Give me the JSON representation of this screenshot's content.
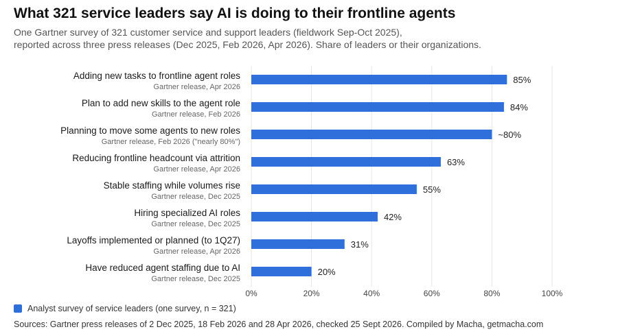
{
  "header": {
    "title": "What 321 service leaders say AI is doing to their frontline agents",
    "subtitle_line1": "One Gartner survey of 321 customer service and support leaders (fieldwork Sep-Oct 2025),",
    "subtitle_line2": "reported across three press releases (Dec 2025, Feb 2026, Apr 2026). Share of leaders or their organizations."
  },
  "legend": {
    "label": "Analyst survey of service leaders (one survey, n = 321)",
    "color": "#2f6fdc"
  },
  "footer": {
    "sources": "Sources: Gartner press releases of 2 Dec 2025, 18 Feb 2026 and 28 Apr 2026, checked 25 Sept 2026. Compiled by Macha, getmacha.com"
  },
  "chart_data": {
    "type": "bar",
    "orientation": "horizontal",
    "categories": [
      "Adding new tasks to frontline agent roles",
      "Plan to add new skills to the agent role",
      "Planning to move some agents to new roles",
      "Reducing frontline headcount via attrition",
      "Stable staffing while volumes rise",
      "Hiring specialized AI roles",
      "Layoffs implemented or planned (to 1Q27)",
      "Have reduced agent staffing due to AI"
    ],
    "category_sources": [
      "Gartner release, Apr 2026",
      "Gartner release, Feb 2026",
      "Gartner release, Feb 2026 (\"nearly 80%\")",
      "Gartner release, Apr 2026",
      "Gartner release, Dec 2025",
      "Gartner release, Dec 2025",
      "Gartner release, Apr 2026",
      "Gartner release, Dec 2025"
    ],
    "values": [
      85,
      84,
      80,
      63,
      55,
      42,
      31,
      20
    ],
    "data_labels": [
      "85%",
      "84%",
      "~80%",
      "63%",
      "55%",
      "42%",
      "31%",
      "20%"
    ],
    "xlim": [
      0,
      100
    ],
    "x_ticks": [
      0,
      20,
      40,
      60,
      80,
      100
    ],
    "x_tick_labels": [
      "0%",
      "20%",
      "40%",
      "60%",
      "80%",
      "100%"
    ],
    "grid": "vertical",
    "legend_position": "bottom-left",
    "bar_color": "#2f6fdc"
  }
}
